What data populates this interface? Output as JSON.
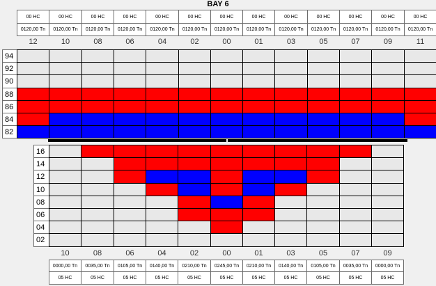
{
  "title": "BAY 6",
  "colors": {
    "red": "#ff0000",
    "blue": "#0000ff",
    "empty": "#e8e8e8"
  },
  "deck": {
    "columns": [
      "12",
      "10",
      "08",
      "06",
      "04",
      "02",
      "00",
      "01",
      "03",
      "05",
      "07",
      "09",
      "11"
    ],
    "hc_labels": [
      "00 HC",
      "00 HC",
      "00 HC",
      "00 HC",
      "00 HC",
      "00 HC",
      "00 HC",
      "00 HC",
      "00 HC",
      "00 HC",
      "00 HC",
      "00 HC",
      "00 HC"
    ],
    "tn_labels": [
      "0120,00 Tn",
      "0120,00 Tn",
      "0120,00 Tn",
      "0120,00 Tn",
      "0120,00 Tn",
      "0120,00 Tn",
      "0120,00 Tn",
      "0120,00 Tn",
      "0120,00 Tn",
      "0120,00 Tn",
      "0120,00 Tn",
      "0120,00 Tn",
      "0120,00 Tn"
    ],
    "rows": [
      "94",
      "92",
      "90",
      "88",
      "86",
      "84",
      "82"
    ],
    "cells": [
      "EEEEEEEEEEEEE",
      "EEEEEEEEEEEEE",
      "EEEEEEEEEEEEE",
      "RRRRRRRRRRRRR",
      "RRRRRRRRRRRRR",
      "RBBBBBBBBBBBR",
      "BBBBBBBBBBBBB"
    ]
  },
  "hold": {
    "columns": [
      "10",
      "08",
      "06",
      "04",
      "02",
      "00",
      "01",
      "03",
      "05",
      "07",
      "09"
    ],
    "tn_labels": [
      "0000,00 Tn",
      "0035,00 Tn",
      "0105,00 Tn",
      "0140,00 Tn",
      "0210,00 Tn",
      "0245,00 Tn",
      "0210,00 Tn",
      "0140,00 Tn",
      "0105,00 Tn",
      "0035,00 Tn",
      "0000,00 Tn"
    ],
    "hc_labels": [
      "05 HC",
      "05 HC",
      "05 HC",
      "05 HC",
      "05 HC",
      "05 HC",
      "05 HC",
      "05 HC",
      "05 HC",
      "05 HC",
      "05 HC"
    ],
    "rows": [
      "16",
      "14",
      "12",
      "10",
      "08",
      "06",
      "04",
      "02"
    ],
    "cells": [
      "ERRRRRRRRRE",
      "EERRRRRRREE",
      "EERBBRBBREE",
      "EEERBRBREEE",
      "EEEERBREEEE",
      "EEEERRREEEE",
      "EEEEEREEEEE",
      "EEEEEEEEEEE"
    ]
  }
}
